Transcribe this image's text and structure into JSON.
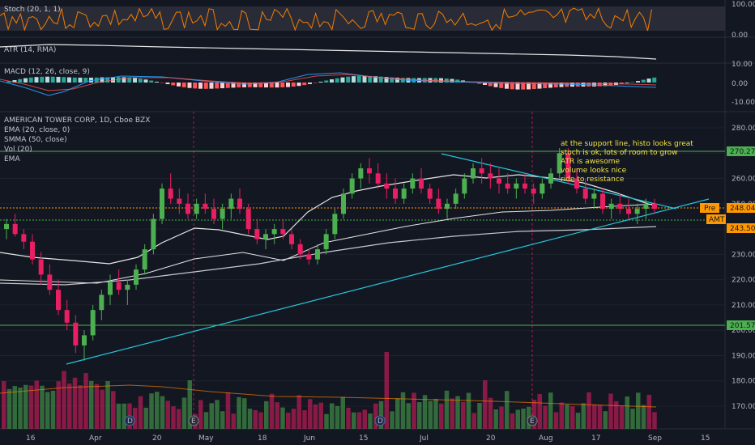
{
  "symbol": {
    "name": "AMERICAN TOWER CORP, 1D, Cboe BZX",
    "ticker_tag": "AMT",
    "pre_label": "Pre",
    "studies": [
      "EMA (20, close, 0)",
      "SMMA (50, close)",
      "Vol (20)",
      "EMA"
    ]
  },
  "colors": {
    "background": "#131722",
    "up": "#4caf50",
    "down": "#e91e63",
    "ema": "#e6e6e6",
    "smma": "#c8c8d0",
    "trendline": "#26c6da",
    "support_resistance": "#4caf50",
    "pre_line": "#ff9800",
    "note": "#f0e442",
    "stoch": "#f57c00",
    "macd_line": "#2196f3",
    "signal_line": "#ff5252"
  },
  "annotation_lines": [
    "at the support line, histo looks great",
    "stoch is ok, lots of room to grow",
    "ATR is awesome",
    "volume looks nice",
    "ride to resistance"
  ],
  "stoch_pane": {
    "title": "Stoch (20, 1, 1)",
    "ticks": [
      "100.00",
      "0.00"
    ]
  },
  "atr_pane": {
    "title": "ATR (14, RMA)",
    "ticks": [
      "10.00"
    ]
  },
  "macd_pane": {
    "title": "MACD (12, 26, close, 9)",
    "ticks": [
      "0.00",
      "-10.00"
    ]
  },
  "x_axis": {
    "labels": [
      "16",
      "Apr",
      "20",
      "May",
      "18",
      "Jun",
      "15",
      "Jul",
      "20",
      "Aug",
      "17",
      "Sep",
      "15"
    ]
  },
  "event_markers": [
    "D",
    "E",
    "D",
    "E"
  ],
  "chart_data": {
    "type": "candlestick",
    "price_axis": {
      "ticks": [
        170,
        180,
        190,
        200,
        210,
        220,
        230,
        240,
        250,
        260,
        270,
        280
      ],
      "range": [
        164,
        286
      ]
    },
    "levels": [
      {
        "label": "270.27",
        "value": 270.27
      },
      {
        "label": "201.57",
        "value": 201.57
      },
      {
        "label": "243.50",
        "value": 243.5
      },
      {
        "label": "248.04",
        "value": 248.04
      }
    ],
    "candles_approx": [
      [
        240,
        244,
        236,
        242
      ],
      [
        242,
        246,
        237,
        238
      ],
      [
        238,
        240,
        232,
        235
      ],
      [
        235,
        238,
        226,
        228
      ],
      [
        228,
        231,
        218,
        222
      ],
      [
        222,
        226,
        214,
        216
      ],
      [
        216,
        220,
        206,
        208
      ],
      [
        208,
        212,
        200,
        203
      ],
      [
        203,
        206,
        191,
        194
      ],
      [
        194,
        200,
        188,
        198
      ],
      [
        198,
        210,
        196,
        208
      ],
      [
        208,
        216,
        204,
        214
      ],
      [
        214,
        222,
        210,
        219
      ],
      [
        219,
        224,
        214,
        216
      ],
      [
        216,
        220,
        210,
        218
      ],
      [
        218,
        226,
        216,
        224
      ],
      [
        224,
        234,
        222,
        232
      ],
      [
        232,
        246,
        230,
        244
      ],
      [
        244,
        258,
        242,
        256
      ],
      [
        256,
        262,
        250,
        252
      ],
      [
        252,
        256,
        246,
        250
      ],
      [
        250,
        254,
        244,
        246
      ],
      [
        246,
        252,
        244,
        250
      ],
      [
        250,
        254,
        246,
        248
      ],
      [
        248,
        252,
        242,
        244
      ],
      [
        244,
        250,
        240,
        248
      ],
      [
        248,
        254,
        244,
        252
      ],
      [
        252,
        256,
        246,
        248
      ],
      [
        248,
        250,
        238,
        240
      ],
      [
        240,
        244,
        234,
        236
      ],
      [
        236,
        240,
        232,
        238
      ],
      [
        238,
        242,
        234,
        240
      ],
      [
        240,
        244,
        236,
        238
      ],
      [
        238,
        240,
        232,
        234
      ],
      [
        234,
        236,
        228,
        230
      ],
      [
        230,
        232,
        226,
        228
      ],
      [
        228,
        234,
        226,
        232
      ],
      [
        232,
        240,
        230,
        238
      ],
      [
        238,
        248,
        236,
        246
      ],
      [
        246,
        256,
        244,
        254
      ],
      [
        254,
        262,
        252,
        260
      ],
      [
        260,
        266,
        256,
        264
      ],
      [
        264,
        268,
        258,
        262
      ],
      [
        262,
        266,
        256,
        258
      ],
      [
        258,
        262,
        252,
        256
      ],
      [
        256,
        260,
        250,
        252
      ],
      [
        252,
        258,
        250,
        256
      ],
      [
        256,
        262,
        254,
        260
      ],
      [
        260,
        264,
        254,
        256
      ],
      [
        256,
        258,
        250,
        252
      ],
      [
        252,
        256,
        246,
        248
      ],
      [
        248,
        252,
        244,
        250
      ],
      [
        250,
        256,
        248,
        254
      ],
      [
        254,
        262,
        252,
        260
      ],
      [
        260,
        266,
        258,
        264
      ],
      [
        264,
        268,
        258,
        262
      ],
      [
        262,
        266,
        256,
        260
      ],
      [
        260,
        264,
        254,
        258
      ],
      [
        258,
        262,
        254,
        256
      ],
      [
        256,
        260,
        252,
        258
      ],
      [
        258,
        262,
        254,
        256
      ],
      [
        256,
        258,
        250,
        254
      ],
      [
        254,
        260,
        252,
        258
      ],
      [
        258,
        264,
        256,
        262
      ],
      [
        262,
        272,
        260,
        270
      ],
      [
        270,
        272,
        258,
        260
      ],
      [
        260,
        264,
        254,
        256
      ],
      [
        256,
        260,
        250,
        252
      ],
      [
        252,
        256,
        248,
        254
      ],
      [
        254,
        256,
        246,
        248
      ],
      [
        248,
        252,
        244,
        250
      ],
      [
        250,
        254,
        246,
        248
      ],
      [
        248,
        252,
        244,
        246
      ],
      [
        246,
        250,
        242,
        248
      ],
      [
        248,
        252,
        244,
        250
      ],
      [
        250,
        252,
        246,
        248
      ]
    ]
  }
}
